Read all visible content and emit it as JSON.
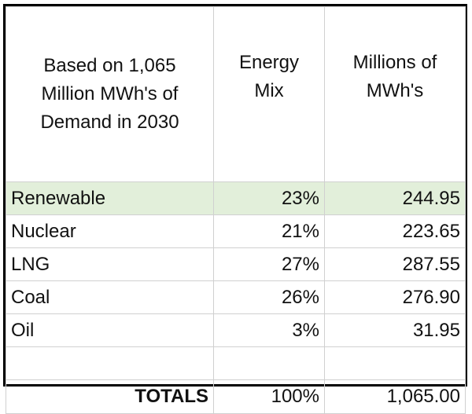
{
  "table": {
    "header": [
      [
        "Based on 1,065",
        "Million MWh's of",
        "Demand in 2030"
      ],
      [
        "Energy",
        "Mix"
      ],
      [
        "Millions of",
        "MWh's"
      ]
    ],
    "rows": [
      [
        "Renewable",
        "23%",
        "244.95"
      ],
      [
        "Nuclear",
        "21%",
        "223.65"
      ],
      [
        "LNG",
        "27%",
        "287.55"
      ],
      [
        "Coal",
        "26%",
        "276.90"
      ],
      [
        "Oil",
        "3%",
        "31.95"
      ]
    ],
    "totals": [
      "TOTALS",
      "100%",
      "1,065.00"
    ]
  }
}
